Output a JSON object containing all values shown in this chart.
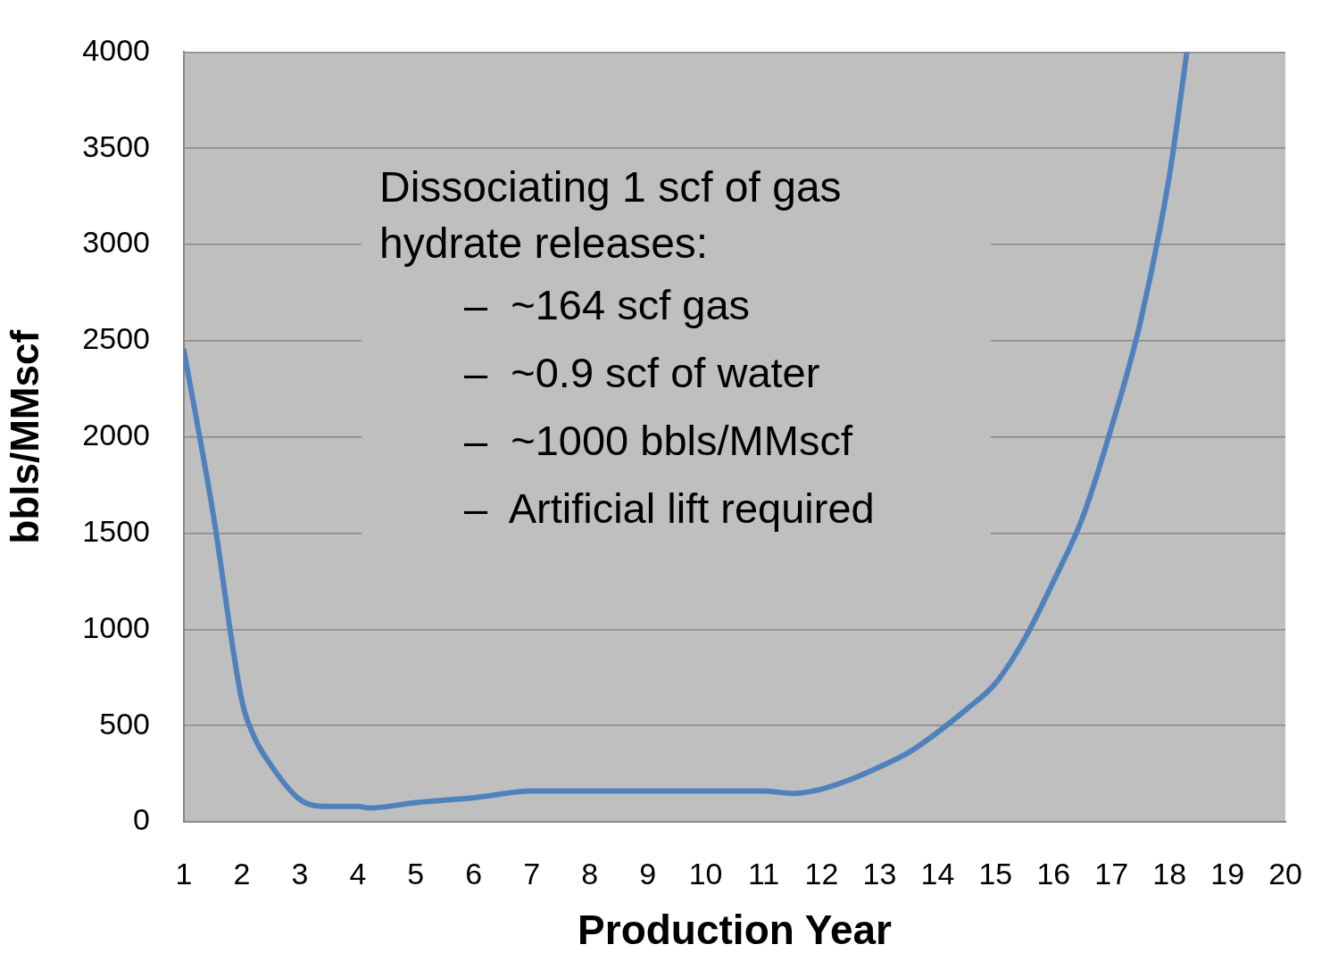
{
  "chart_data": {
    "type": "line",
    "xlabel": "Production Year",
    "ylabel": "bbls/MMscf",
    "x": [
      1,
      1.5,
      2,
      2.2,
      2.5,
      3,
      3.5,
      4,
      4.2,
      5,
      6,
      7,
      8,
      9,
      10,
      11,
      11.5,
      12,
      12.5,
      13,
      13.5,
      14,
      14.5,
      15,
      15.5,
      16,
      16.5,
      17,
      17.5,
      18,
      18.3
    ],
    "series": [
      {
        "color": "#4f81bd",
        "values": [
          2450,
          1610,
          630,
          450,
          295,
          116,
          80,
          80,
          72,
          100,
          125,
          160,
          160,
          160,
          160,
          160,
          147,
          170,
          220,
          285,
          360,
          465,
          585,
          720,
          950,
          1250,
          1580,
          2050,
          2600,
          3360,
          4000
        ]
      }
    ],
    "xlim": [
      1,
      20
    ],
    "xticks": [
      1,
      2,
      3,
      4,
      5,
      6,
      7,
      8,
      9,
      10,
      11,
      12,
      13,
      14,
      15,
      16,
      17,
      18,
      19,
      20
    ],
    "ylim": [
      0,
      4000
    ],
    "yticks": [
      0,
      500,
      1000,
      1500,
      2000,
      2500,
      3000,
      3500,
      4000
    ],
    "grid": "y",
    "marker": "none",
    "annotations": [
      "Dissociating 1 scf of gas hydrate releases:",
      "–  ~164 scf gas",
      "–  ~0.9 scf of water",
      "–  ~1000 bbls/MMscf",
      "–  Artificial lift required"
    ]
  }
}
